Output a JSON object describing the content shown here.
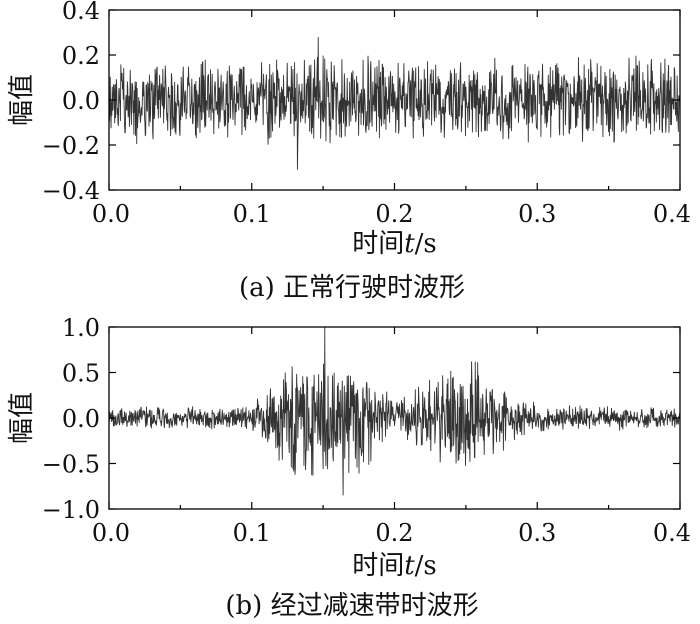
{
  "chart_data": [
    {
      "type": "line",
      "caption": "(a) 正常行驶时波形",
      "xlabel_prefix": "时间",
      "xlabel_var": "t",
      "xlabel_unit": "/s",
      "ylabel": "幅值",
      "xlim": [
        0.0,
        0.4
      ],
      "ylim": [
        -0.4,
        0.4
      ],
      "xticks": [
        "0.0",
        "0.1",
        "0.2",
        "0.3",
        "0.4"
      ],
      "yticks": [
        "−0.4",
        "−0.2",
        "0.0",
        "0.2",
        "0.4"
      ],
      "grid": false,
      "series": [
        {
          "envelope_t": [
            0.0,
            0.05,
            0.1,
            0.15,
            0.2,
            0.25,
            0.3,
            0.35,
            0.4
          ],
          "envelope_amp": [
            0.2,
            0.2,
            0.19,
            0.24,
            0.19,
            0.2,
            0.2,
            0.21,
            0.2
          ],
          "peak_max": 0.28,
          "peak_min": -0.31,
          "color": "#333333"
        }
      ]
    },
    {
      "type": "line",
      "caption": "(b) 经过减速带时波形",
      "xlabel_prefix": "时间",
      "xlabel_var": "t",
      "xlabel_unit": "/s",
      "ylabel": "幅值",
      "xlim": [
        0.0,
        0.4
      ],
      "ylim": [
        -1.0,
        1.0
      ],
      "xticks": [
        "0.0",
        "0.1",
        "0.2",
        "0.3",
        "0.4"
      ],
      "yticks": [
        "−1.0",
        "−0.5",
        "0.0",
        "0.5",
        "1.0"
      ],
      "grid": false,
      "series": [
        {
          "envelope_t": [
            0.0,
            0.05,
            0.1,
            0.11,
            0.12,
            0.14,
            0.17,
            0.19,
            0.2,
            0.22,
            0.24,
            0.255,
            0.265,
            0.28,
            0.3,
            0.35,
            0.4
          ],
          "envelope_amp": [
            0.13,
            0.13,
            0.15,
            0.32,
            0.55,
            0.8,
            0.75,
            0.4,
            0.18,
            0.4,
            0.62,
            0.72,
            0.6,
            0.3,
            0.17,
            0.14,
            0.13
          ],
          "peak_max": 1.0,
          "peak_min": -0.85,
          "color": "#333333"
        }
      ]
    }
  ]
}
